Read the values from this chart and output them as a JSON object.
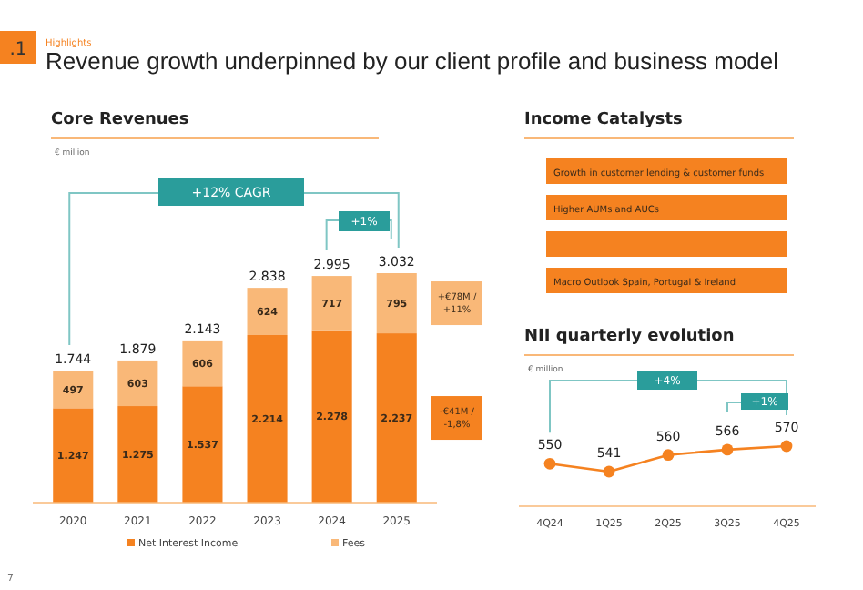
{
  "chart_data": [
    {
      "type": "other",
      "subtitle": "Highlights",
      "title": "Revenue growth underpinned by our client profile and business model",
      "annotations": [
        ".1",
        "7"
      ]
    },
    {
      "type": "bar",
      "title": "Core Revenues",
      "subtitle": "€ million",
      "categories": [
        "2020",
        "2021",
        "2022",
        "2023",
        "2024",
        "2025"
      ],
      "stacked": true,
      "legend": "bottom",
      "series": [
        {
          "name": "Net Interest Income",
          "color": "#f58220",
          "values": [
            1247,
            1275,
            1537,
            2214,
            2278,
            2237
          ],
          "value_labels": [
            "1.247",
            "1.275",
            "1.537",
            "2.214",
            "2.278",
            "2.237"
          ]
        },
        {
          "name": "Fees",
          "color": "#f9b878",
          "values": [
            497,
            603,
            606,
            624,
            717,
            795
          ],
          "value_labels": [
            "497",
            "603",
            "606",
            "624",
            "717",
            "795"
          ]
        }
      ],
      "totals": [
        "1.744",
        "1.879",
        "2.143",
        "2.838",
        "2.995",
        "3.032"
      ],
      "annotations": [
        "+12% CAGR",
        "+1%",
        "+€78M / +11%",
        "-€41M / -1,8%"
      ]
    },
    {
      "type": "other",
      "title": "Income Catalysts",
      "annotations": [
        "Growth in customer lending & customer funds",
        "Higher AUMs and AUCs",
        null,
        "Macro Outlook Spain, Portugal & Ireland"
      ]
    },
    {
      "type": "line",
      "title": "NII quarterly evolution",
      "subtitle": "€ million",
      "categories": [
        "4Q24",
        "1Q25",
        "2Q25",
        "3Q25",
        "4Q25"
      ],
      "series": [
        {
          "color": "#f58220",
          "values": [
            550,
            541,
            560,
            566,
            570
          ]
        }
      ],
      "data_labels": true,
      "marker": "circle",
      "annotations": [
        "+4%",
        "+1%"
      ]
    }
  ]
}
